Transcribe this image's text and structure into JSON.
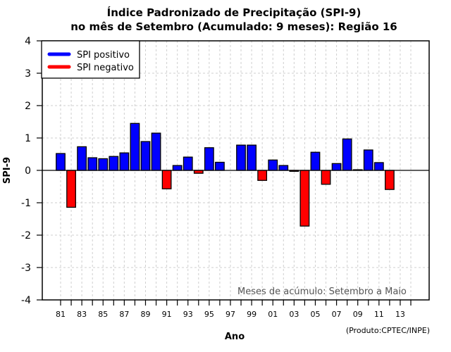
{
  "chart_data": {
    "type": "bar",
    "title": "Índice Padronizado de Precipitação (SPI-9)",
    "subtitle": "no mês de Setembro (Acumulado: 9 meses): Região 16",
    "xlabel": "Ano",
    "ylabel": "SPI-9",
    "ylim": [
      -4,
      4
    ],
    "yticks": [
      -4,
      -3,
      -2,
      -1,
      0,
      1,
      2,
      3,
      4
    ],
    "xlim_years": [
      1979.4,
      2015.7
    ],
    "tick_years": [
      1981,
      1982,
      1983,
      1984,
      1985,
      1986,
      1987,
      1988,
      1989,
      1990,
      1991,
      1992,
      1993,
      1994,
      1995,
      1996,
      1997,
      1998,
      1999,
      2000,
      2001,
      2002,
      2003,
      2004,
      2005,
      2006,
      2007,
      2008,
      2009,
      2010,
      2011,
      2012,
      2013,
      2014
    ],
    "tick_labels": [
      {
        "year": 1981,
        "label": "81"
      },
      {
        "year": 1983,
        "label": "83"
      },
      {
        "year": 1985,
        "label": "85"
      },
      {
        "year": 1987,
        "label": "87"
      },
      {
        "year": 1989,
        "label": "89"
      },
      {
        "year": 1991,
        "label": "91"
      },
      {
        "year": 1993,
        "label": "93"
      },
      {
        "year": 1995,
        "label": "95"
      },
      {
        "year": 1997,
        "label": "97"
      },
      {
        "year": 1999,
        "label": "99"
      },
      {
        "year": 2001,
        "label": "01"
      },
      {
        "year": 2003,
        "label": "03"
      },
      {
        "year": 2005,
        "label": "05"
      },
      {
        "year": 2007,
        "label": "07"
      },
      {
        "year": 2009,
        "label": "09"
      },
      {
        "year": 2011,
        "label": "11"
      },
      {
        "year": 2013,
        "label": "13"
      }
    ],
    "grid": true,
    "years": [
      1981,
      1982,
      1983,
      1984,
      1985,
      1986,
      1987,
      1988,
      1989,
      1990,
      1991,
      1992,
      1993,
      1994,
      1995,
      1996,
      1997,
      1998,
      1999,
      2000,
      2001,
      2002,
      2003,
      2004,
      2005,
      2006,
      2007,
      2008,
      2009,
      2010,
      2011,
      2012
    ],
    "values": [
      0.52,
      -1.14,
      0.73,
      0.39,
      0.36,
      0.43,
      0.54,
      1.45,
      0.89,
      1.15,
      -0.57,
      0.15,
      0.41,
      -0.09,
      0.7,
      0.25,
      null,
      0.78,
      0.78,
      -0.31,
      0.32,
      0.15,
      -0.03,
      -1.72,
      0.56,
      -0.43,
      0.21,
      0.97,
      0.02,
      0.63,
      0.24,
      -0.59
    ],
    "colors": {
      "positive": "#0000ff",
      "negative": "#ff0000"
    },
    "legend": {
      "position": "top-left",
      "entries": [
        {
          "label": "SPI positivo",
          "color": "#0000ff"
        },
        {
          "label": "SPI negativo",
          "color": "#ff0000"
        }
      ]
    },
    "annotation": "Meses de acúmulo: Setembro a Maio",
    "credit": "(Produto:CPTEC/INPE)"
  }
}
